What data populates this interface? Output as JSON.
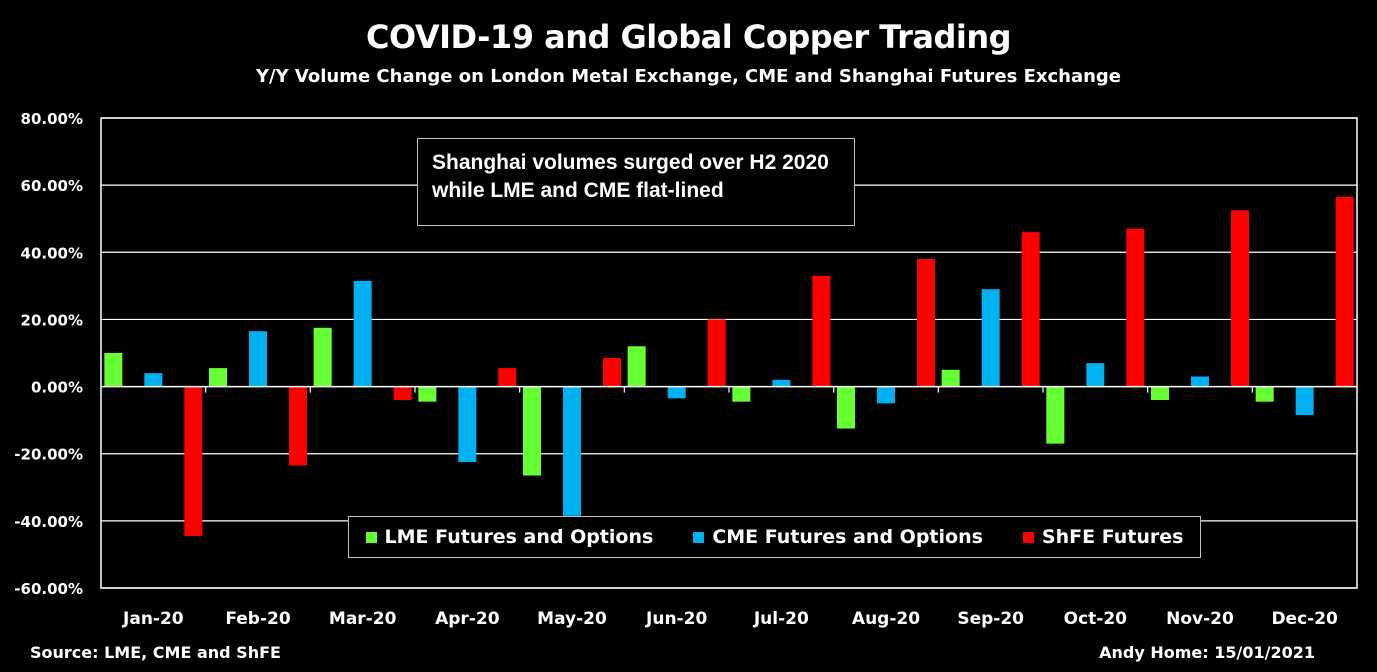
{
  "chart_data": {
    "type": "bar",
    "title": "COVID-19 and Global Copper Trading",
    "subtitle": "Y/Y Volume Change on London Metal Exchange, CME and Shanghai Futures Exchange",
    "categories": [
      "Jan-20",
      "Feb-20",
      "Mar-20",
      "Apr-20",
      "May-20",
      "Jun-20",
      "Jul-20",
      "Aug-20",
      "Sep-20",
      "Oct-20",
      "Nov-20",
      "Dec-20"
    ],
    "series": [
      {
        "name": "LME Futures and Options",
        "color": "#66ff33",
        "values": [
          10.0,
          5.5,
          17.5,
          -4.5,
          -26.5,
          12.0,
          -4.5,
          -12.5,
          5.0,
          -17.0,
          -4.0,
          -4.5
        ]
      },
      {
        "name": "CME Futures and Options",
        "color": "#00b0f0",
        "values": [
          4.0,
          16.5,
          31.5,
          -22.5,
          -38.5,
          -3.5,
          2.0,
          -5.0,
          29.0,
          7.0,
          3.0,
          -8.5
        ]
      },
      {
        "name": "ShFE Futures",
        "color": "#ff0000",
        "values": [
          -44.5,
          -23.5,
          -4.0,
          5.5,
          8.5,
          20.0,
          33.0,
          38.0,
          46.0,
          47.0,
          52.5,
          56.5
        ]
      }
    ],
    "ylim": [
      -60,
      80
    ],
    "yticks": [
      80,
      60,
      40,
      20,
      0,
      -20,
      -40,
      -60
    ],
    "ytick_labels": [
      "80.00%",
      "60.00%",
      "40.00%",
      "20.00%",
      "0.00%",
      "-20.00%",
      "-40.00%",
      "-60.00%"
    ],
    "grid": true,
    "annotation": "Shanghai volumes surged over H2 2020 while LME and CME flat-lined",
    "legend_position": "bottom-center"
  },
  "footer": {
    "source": "Source: LME, CME and ShFE",
    "credit": "Andy Home: 15/01/2021"
  },
  "colors": {
    "background": "#000000",
    "grid": "#ffffff",
    "text": "#ffffff"
  }
}
